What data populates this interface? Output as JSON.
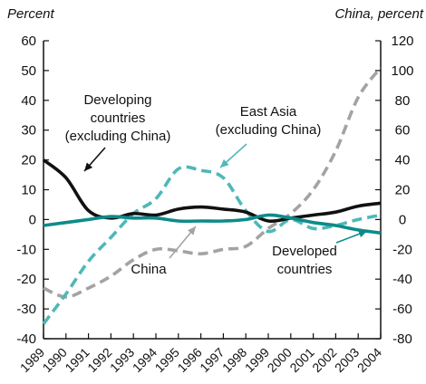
{
  "chart_data": {
    "type": "line",
    "left_axis_label": "Percent",
    "right_axis_label": "China, percent",
    "x": [
      "1989",
      "1990",
      "1991",
      "1992",
      "1993",
      "1994",
      "1995",
      "1996",
      "1997",
      "1998",
      "1999",
      "2000",
      "2001",
      "2002",
      "2003",
      "2004"
    ],
    "ylim_left": [
      -40,
      60
    ],
    "ylim_right": [
      -80,
      120
    ],
    "yticks_left": [
      60,
      50,
      40,
      30,
      20,
      10,
      0,
      -10,
      -20,
      -30,
      -40
    ],
    "yticks_right": [
      120,
      100,
      80,
      60,
      40,
      20,
      0,
      -20,
      -40,
      -60,
      -80
    ],
    "grid": false,
    "series": [
      {
        "name": "Developing countries (excluding China)",
        "axis": "left",
        "style": "solid",
        "color": "#111111",
        "values": [
          20,
          14,
          3,
          0.5,
          2,
          1.5,
          3.5,
          4.2,
          3.5,
          2.5,
          -0.5,
          0.5,
          1.5,
          2.5,
          4.5,
          5.5
        ]
      },
      {
        "name": "East Asia (excluding China)",
        "axis": "left",
        "style": "dashed",
        "color": "#4fb8b8",
        "values": [
          -35,
          -25,
          -14,
          -6,
          2,
          7,
          17,
          16.5,
          14,
          3,
          -4,
          0,
          -3,
          -2,
          0,
          1.5
        ]
      },
      {
        "name": "China",
        "axis": "right",
        "style": "dashed",
        "color": "#a3a3a3",
        "values": [
          -46,
          -52,
          -46,
          -38,
          -27,
          -20,
          -21,
          -23,
          -20,
          -18,
          -6,
          4,
          20,
          46,
          82,
          102
        ]
      },
      {
        "name": "Developed countries",
        "axis": "left",
        "style": "solid",
        "color": "#0e8a8a",
        "values": [
          -2,
          -1,
          0,
          1,
          0.5,
          0.5,
          -0.5,
          -0.5,
          -0.5,
          0,
          1.5,
          0.5,
          -1,
          -2,
          -3.5,
          -4.5
        ]
      }
    ],
    "annotations": [
      {
        "lines": [
          "Developing",
          "countries",
          "(excluding China)"
        ]
      },
      {
        "lines": [
          "East Asia",
          "(excluding China)"
        ]
      },
      {
        "lines": [
          "China"
        ]
      },
      {
        "lines": [
          "Developed",
          "countries"
        ]
      }
    ]
  }
}
